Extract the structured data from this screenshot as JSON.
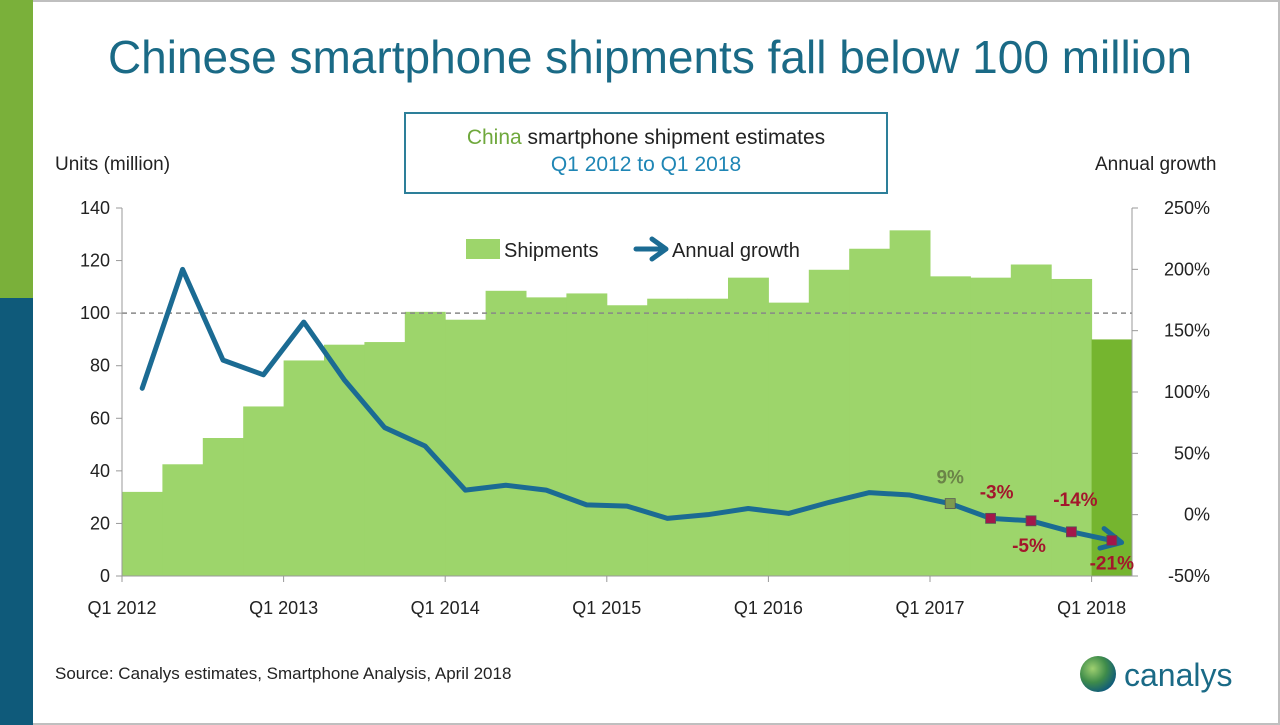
{
  "slide": {
    "title": "Chinese smartphone shipments fall below 100 million",
    "subtitle_accent": "China",
    "subtitle_rest": " smartphone shipment estimates",
    "subtitle_line2": "Q1 2012 to Q1 2018",
    "left_axis_title": "Units (million)",
    "right_axis_title": "Annual growth",
    "source": "Source: Canalys estimates, Smartphone Analysis, April 2018",
    "logo_text": "canalys"
  },
  "colors": {
    "bars": "#9dd56b",
    "bar_highlight": "#75b52f",
    "line": "#1b6b93",
    "accent_green": "#6fa83c",
    "negative_label": "#a3172c",
    "positive_label": "#6b8448",
    "left_strip_top": "#7ab03a",
    "left_strip_bottom": "#0f5a7a"
  },
  "chart_data": {
    "type": "bar",
    "categories": [
      "Q1 2012",
      "Q2 2012",
      "Q3 2012",
      "Q4 2012",
      "Q1 2013",
      "Q2 2013",
      "Q3 2013",
      "Q4 2013",
      "Q1 2014",
      "Q2 2014",
      "Q3 2014",
      "Q4 2014",
      "Q1 2015",
      "Q2 2015",
      "Q3 2015",
      "Q4 2015",
      "Q1 2016",
      "Q2 2016",
      "Q3 2016",
      "Q4 2016",
      "Q1 2017",
      "Q2 2017",
      "Q3 2017",
      "Q4 2017",
      "Q1 2018"
    ],
    "x_tick_labels": [
      "Q1 2012",
      "Q1 2013",
      "Q1 2014",
      "Q1 2015",
      "Q1 2016",
      "Q1 2017",
      "Q1 2018"
    ],
    "series": [
      {
        "name": "Shipments",
        "axis": "left",
        "values": [
          32,
          42.5,
          52.5,
          64.5,
          82,
          88,
          89,
          100.5,
          97.5,
          108.5,
          106,
          107.5,
          103,
          105.5,
          105.5,
          113.5,
          104,
          116.5,
          124.5,
          131.5,
          114,
          113.5,
          118.5,
          113,
          90
        ]
      },
      {
        "name": "Annual growth",
        "axis": "right",
        "type": "line",
        "values": [
          103,
          200,
          126,
          114,
          157,
          110,
          71,
          56,
          20,
          24,
          20,
          8,
          7,
          -3,
          0,
          5,
          1,
          10,
          18,
          16,
          9,
          -3,
          -5,
          -14,
          -21
        ]
      }
    ],
    "highlight_labels": [
      {
        "index": 20,
        "label": "9%"
      },
      {
        "index": 21,
        "label": "-3%"
      },
      {
        "index": 22,
        "label": "-5%"
      },
      {
        "index": 23,
        "label": "-14%"
      },
      {
        "index": 24,
        "label": "-21%"
      }
    ],
    "left_axis": {
      "ylim": [
        0,
        140
      ],
      "ticks": [
        0,
        20,
        40,
        60,
        80,
        100,
        120,
        140
      ]
    },
    "right_axis": {
      "ylim": [
        -50,
        250
      ],
      "ticks": [
        "-50%",
        "0%",
        "50%",
        "100%",
        "150%",
        "200%",
        "250%"
      ]
    },
    "reference_line": 100,
    "legend": [
      "Shipments",
      "Annual growth"
    ],
    "legend_placement": "top-center"
  }
}
